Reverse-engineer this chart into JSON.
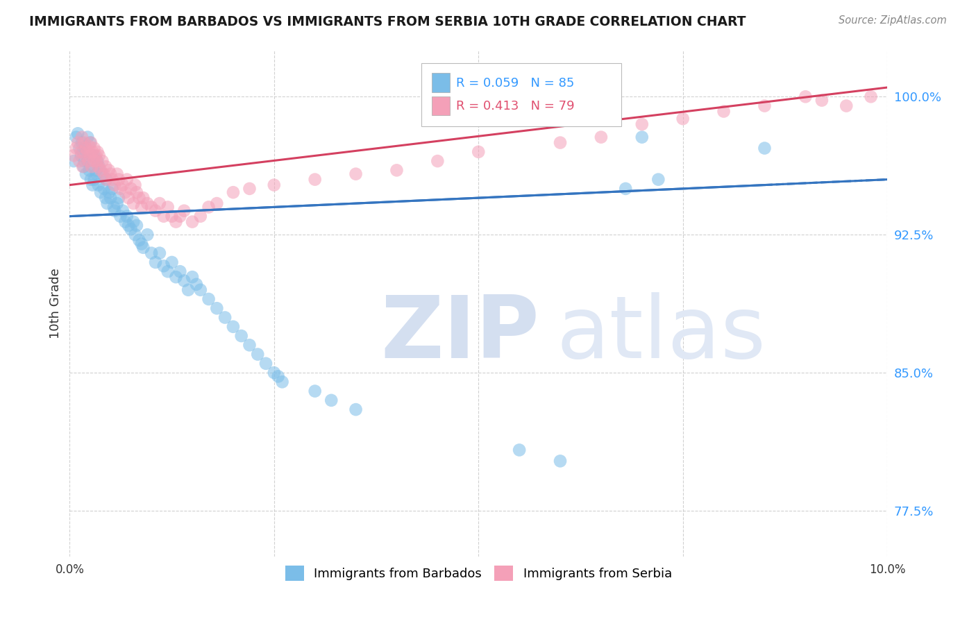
{
  "title": "IMMIGRANTS FROM BARBADOS VS IMMIGRANTS FROM SERBIA 10TH GRADE CORRELATION CHART",
  "source": "Source: ZipAtlas.com",
  "xlabel_blue": "Immigrants from Barbados",
  "xlabel_pink": "Immigrants from Serbia",
  "ylabel": "10th Grade",
  "xlim": [
    0.0,
    10.0
  ],
  "ylim": [
    75.0,
    102.5
  ],
  "yticks": [
    77.5,
    85.0,
    92.5,
    100.0
  ],
  "ytick_labels": [
    "77.5%",
    "85.0%",
    "92.5%",
    "100.0%"
  ],
  "xticks": [
    0.0,
    2.5,
    5.0,
    7.5,
    10.0
  ],
  "xtick_labels": [
    "0.0%",
    "",
    "",
    "",
    "10.0%"
  ],
  "R_blue": 0.059,
  "N_blue": 85,
  "R_pink": 0.413,
  "N_pink": 79,
  "blue_color": "#7bbde8",
  "pink_color": "#f4a0b8",
  "blue_line_color": "#3575c0",
  "pink_line_color": "#d44060",
  "background_color": "#ffffff",
  "blue_scatter_x": [
    0.05,
    0.08,
    0.1,
    0.12,
    0.14,
    0.15,
    0.16,
    0.17,
    0.18,
    0.19,
    0.2,
    0.2,
    0.22,
    0.22,
    0.24,
    0.25,
    0.26,
    0.27,
    0.28,
    0.3,
    0.3,
    0.32,
    0.33,
    0.34,
    0.35,
    0.36,
    0.38,
    0.4,
    0.42,
    0.44,
    0.45,
    0.46,
    0.48,
    0.5,
    0.52,
    0.54,
    0.55,
    0.58,
    0.6,
    0.62,
    0.65,
    0.68,
    0.7,
    0.72,
    0.75,
    0.78,
    0.8,
    0.82,
    0.85,
    0.88,
    0.9,
    0.95,
    1.0,
    1.05,
    1.1,
    1.15,
    1.2,
    1.25,
    1.3,
    1.35,
    1.4,
    1.45,
    1.5,
    1.55,
    1.6,
    1.7,
    1.8,
    1.9,
    2.0,
    2.1,
    2.2,
    2.3,
    2.4,
    2.5,
    2.55,
    2.6,
    3.0,
    3.2,
    3.5,
    5.5,
    6.0,
    6.8,
    7.0,
    7.2,
    8.5
  ],
  "blue_scatter_y": [
    96.5,
    97.8,
    98.0,
    97.2,
    96.8,
    97.5,
    97.0,
    96.2,
    96.5,
    97.3,
    95.8,
    97.0,
    96.5,
    97.8,
    96.0,
    97.5,
    95.5,
    96.8,
    95.2,
    96.8,
    95.5,
    96.0,
    95.8,
    96.5,
    95.2,
    96.2,
    94.8,
    95.8,
    95.0,
    94.5,
    95.5,
    94.2,
    94.8,
    94.5,
    95.0,
    94.0,
    93.8,
    94.2,
    94.5,
    93.5,
    93.8,
    93.2,
    93.5,
    93.0,
    92.8,
    93.2,
    92.5,
    93.0,
    92.2,
    92.0,
    91.8,
    92.5,
    91.5,
    91.0,
    91.5,
    90.8,
    90.5,
    91.0,
    90.2,
    90.5,
    90.0,
    89.5,
    90.2,
    89.8,
    89.5,
    89.0,
    88.5,
    88.0,
    87.5,
    87.0,
    86.5,
    86.0,
    85.5,
    85.0,
    84.8,
    84.5,
    84.0,
    83.5,
    83.0,
    80.8,
    80.2,
    95.0,
    97.8,
    95.5,
    97.2
  ],
  "pink_scatter_x": [
    0.05,
    0.08,
    0.1,
    0.12,
    0.14,
    0.15,
    0.16,
    0.18,
    0.19,
    0.2,
    0.22,
    0.23,
    0.24,
    0.25,
    0.26,
    0.27,
    0.28,
    0.3,
    0.3,
    0.32,
    0.33,
    0.34,
    0.35,
    0.36,
    0.38,
    0.4,
    0.42,
    0.44,
    0.45,
    0.48,
    0.5,
    0.52,
    0.55,
    0.58,
    0.6,
    0.62,
    0.65,
    0.68,
    0.7,
    0.72,
    0.75,
    0.78,
    0.8,
    0.82,
    0.85,
    0.88,
    0.9,
    0.95,
    1.0,
    1.05,
    1.1,
    1.15,
    1.2,
    1.25,
    1.3,
    1.35,
    1.4,
    1.5,
    1.6,
    1.7,
    1.8,
    2.0,
    2.2,
    2.5,
    3.0,
    3.5,
    4.0,
    4.5,
    5.0,
    6.0,
    6.5,
    7.0,
    7.5,
    8.0,
    8.5,
    9.0,
    9.2,
    9.5,
    9.8
  ],
  "pink_scatter_y": [
    96.8,
    97.2,
    97.5,
    96.5,
    97.0,
    97.8,
    96.2,
    97.5,
    96.8,
    97.2,
    97.0,
    96.5,
    97.3,
    96.8,
    97.5,
    96.2,
    97.0,
    96.5,
    97.2,
    96.8,
    96.5,
    97.0,
    96.2,
    96.8,
    96.0,
    96.5,
    95.8,
    96.2,
    95.5,
    96.0,
    95.8,
    95.5,
    95.2,
    95.8,
    95.5,
    95.0,
    95.2,
    94.8,
    95.5,
    94.5,
    95.0,
    94.2,
    95.2,
    94.8,
    94.5,
    94.0,
    94.5,
    94.2,
    94.0,
    93.8,
    94.2,
    93.5,
    94.0,
    93.5,
    93.2,
    93.5,
    93.8,
    93.2,
    93.5,
    94.0,
    94.2,
    94.8,
    95.0,
    95.2,
    95.5,
    95.8,
    96.0,
    96.5,
    97.0,
    97.5,
    97.8,
    98.5,
    98.8,
    99.2,
    99.5,
    100.0,
    99.8,
    99.5,
    100.0
  ]
}
